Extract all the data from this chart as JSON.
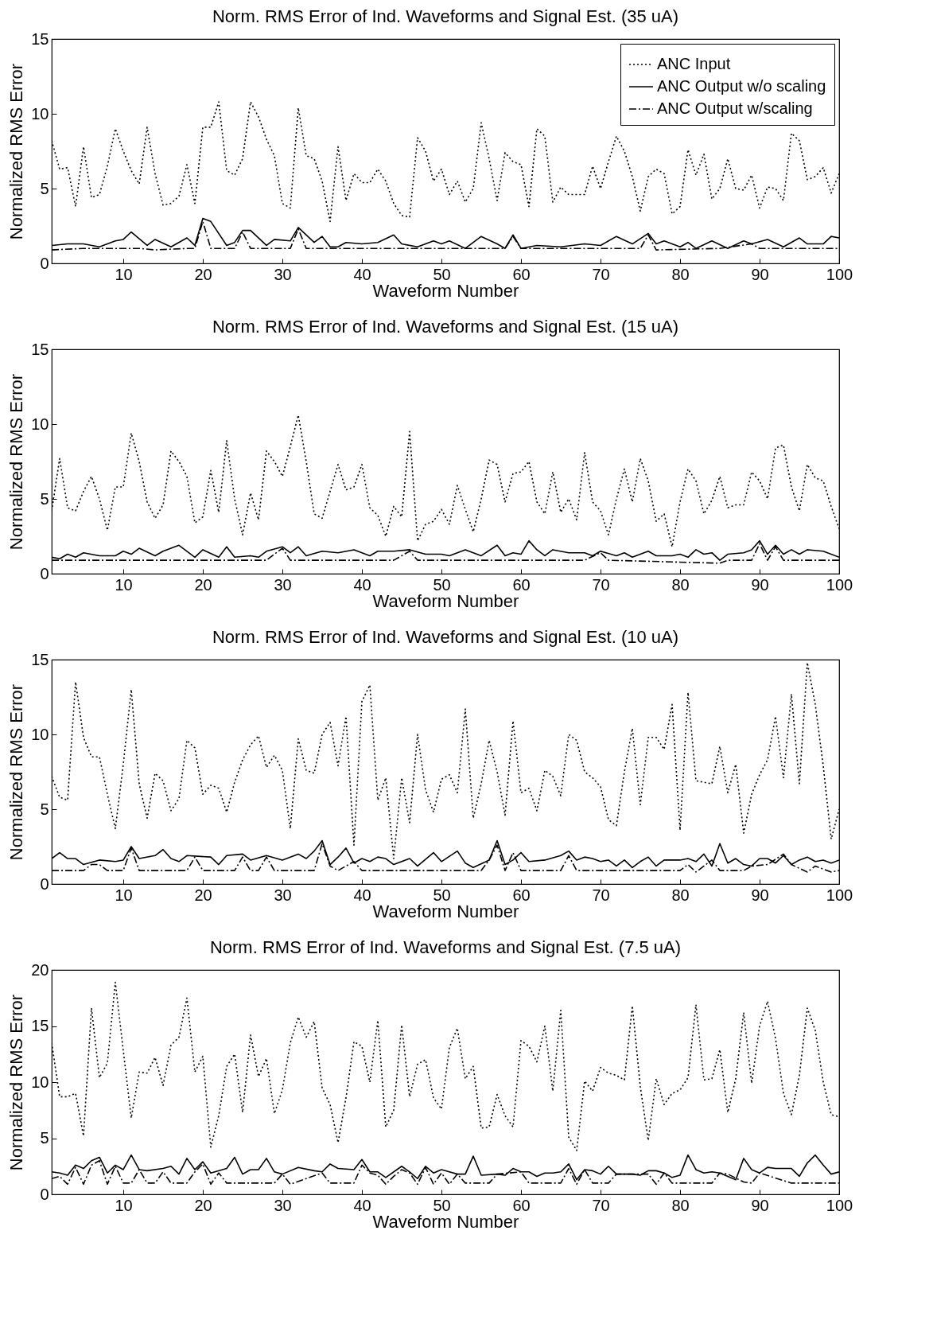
{
  "chart_data": [
    {
      "type": "line",
      "title": "Norm. RMS Error of Ind. Waveforms and Signal Est. (35 uA)",
      "xlabel": "Waveform Number",
      "ylabel": "Normalized RMS Error",
      "xlim": [
        1,
        100
      ],
      "xticks": [
        10,
        20,
        30,
        40,
        50,
        60,
        70,
        80,
        90,
        100
      ],
      "ylim": [
        0,
        15
      ],
      "yticks": [
        0,
        5,
        10,
        15
      ],
      "grid": false,
      "legend": "top right",
      "x": [
        1,
        2,
        3,
        4,
        5,
        6,
        7,
        8,
        9,
        10,
        11,
        12,
        13,
        14,
        15,
        16,
        17,
        18,
        19,
        20,
        21,
        22,
        23,
        24,
        25,
        26,
        27,
        28,
        29,
        30,
        31,
        32,
        33,
        34,
        35,
        36,
        37,
        38,
        39,
        40,
        41,
        42,
        43,
        44,
        45,
        46,
        47,
        48,
        49,
        50,
        51,
        52,
        53,
        54,
        55,
        56,
        57,
        58,
        59,
        60,
        61,
        62,
        63,
        64,
        65,
        66,
        67,
        68,
        69,
        70,
        71,
        72,
        73,
        74,
        75,
        76,
        77,
        78,
        79,
        80,
        81,
        82,
        83,
        84,
        85,
        86,
        87,
        88,
        89,
        90,
        91,
        92,
        93,
        94,
        95,
        96,
        97,
        98,
        99,
        100
      ],
      "series": [
        {
          "name": "ANC Input",
          "color": "#000000",
          "line_style": "dotted",
          "values": [
            8.2,
            6.3,
            6.4,
            3.8,
            7.8,
            4.4,
            4.6,
            6.5,
            9.0,
            7.5,
            6.2,
            5.3,
            9.1,
            6.0,
            3.9,
            4.0,
            4.5,
            6.6,
            4.0,
            9.1,
            9.1,
            10.8,
            6.2,
            5.9,
            7.0,
            10.8,
            9.8,
            8.3,
            7.2,
            4.0,
            3.7,
            10.4,
            7.2,
            7.0,
            5.5,
            2.8,
            7.8,
            4.2,
            6.0,
            5.4,
            5.4,
            6.3,
            5.5,
            4.0,
            3.2,
            3.1,
            8.4,
            7.5,
            5.5,
            6.3,
            4.6,
            5.5,
            4.1,
            5.0,
            9.4,
            7.0,
            4.2,
            7.4,
            6.8,
            6.6,
            3.8,
            9.0,
            8.5,
            4.1,
            5.1,
            4.6,
            4.6,
            4.6,
            6.5,
            5.0,
            6.8,
            8.5,
            7.5,
            5.8,
            3.5,
            5.8,
            6.3,
            6.0,
            3.3,
            3.8,
            7.6,
            5.9,
            7.3,
            4.3,
            5.0,
            7.0,
            5.0,
            4.9,
            5.9,
            3.7,
            5.1,
            5.0,
            4.2,
            8.7,
            8.2,
            5.6,
            5.8,
            6.4,
            4.7,
            6.0
          ]
        },
        {
          "name": "ANC Output w/o scaling",
          "color": "#000000",
          "line_style": "solid",
          "x": [
            1,
            3,
            5,
            7,
            9,
            10,
            11,
            13,
            14,
            16,
            18,
            19,
            20,
            21,
            23,
            24,
            25,
            26,
            28,
            29,
            31,
            32,
            34,
            35,
            36,
            37,
            38,
            40,
            42,
            44,
            45,
            47,
            49,
            50,
            51,
            53,
            55,
            57,
            58,
            59,
            60,
            62,
            65,
            68,
            70,
            72,
            74,
            76,
            77,
            78,
            80,
            81,
            82,
            84,
            86,
            88,
            89,
            91,
            93,
            95,
            96,
            98,
            99,
            100
          ],
          "values": [
            1.2,
            1.3,
            1.3,
            1.1,
            1.5,
            1.6,
            2.1,
            1.2,
            1.6,
            1.1,
            1.7,
            1.2,
            3.0,
            2.8,
            1.2,
            1.4,
            2.2,
            2.2,
            1.2,
            1.6,
            1.5,
            2.4,
            1.4,
            1.8,
            1.1,
            1.1,
            1.4,
            1.3,
            1.4,
            1.9,
            1.3,
            1.1,
            1.5,
            1.3,
            1.5,
            1.0,
            1.8,
            1.3,
            1.0,
            1.9,
            1.0,
            1.2,
            1.1,
            1.3,
            1.2,
            1.8,
            1.3,
            2.0,
            1.3,
            1.5,
            1.1,
            1.4,
            1.0,
            1.5,
            1.0,
            1.5,
            1.3,
            1.6,
            1.1,
            1.7,
            1.3,
            1.3,
            1.8,
            1.7
          ]
        },
        {
          "name": "ANC Output w/scaling",
          "color": "#000000",
          "line_style": "dashed",
          "x": [
            1,
            5,
            8,
            12,
            14,
            18,
            19,
            20,
            21,
            24,
            25,
            26,
            31,
            32,
            33,
            40,
            50,
            58,
            59,
            60,
            70,
            75,
            76,
            77,
            85,
            89,
            90,
            100
          ],
          "values": [
            0.9,
            1.0,
            1.0,
            1.0,
            0.9,
            1.0,
            1.0,
            2.8,
            1.0,
            1.0,
            2.1,
            1.0,
            1.0,
            2.3,
            1.0,
            1.0,
            1.0,
            1.0,
            1.8,
            1.0,
            1.0,
            1.0,
            1.9,
            0.9,
            1.0,
            1.3,
            1.0,
            1.0
          ]
        }
      ]
    },
    {
      "type": "line",
      "title": "Norm. RMS Error of Ind. Waveforms and Signal Est. (15 uA)",
      "xlabel": "Waveform Number",
      "ylabel": "Normalized RMS Error",
      "xlim": [
        1,
        100
      ],
      "xticks": [
        10,
        20,
        30,
        40,
        50,
        60,
        70,
        80,
        90,
        100
      ],
      "ylim": [
        0,
        15
      ],
      "yticks": [
        0,
        5,
        10,
        15
      ],
      "grid": false,
      "x": [
        1,
        2,
        3,
        4,
        5,
        6,
        7,
        8,
        9,
        10,
        11,
        12,
        13,
        14,
        15,
        16,
        17,
        18,
        19,
        20,
        21,
        22,
        23,
        24,
        25,
        26,
        27,
        28,
        29,
        30,
        31,
        32,
        33,
        34,
        35,
        36,
        37,
        38,
        39,
        40,
        41,
        42,
        43,
        44,
        45,
        46,
        47,
        48,
        49,
        50,
        51,
        52,
        53,
        54,
        55,
        56,
        57,
        58,
        59,
        60,
        61,
        62,
        63,
        64,
        65,
        66,
        67,
        68,
        69,
        70,
        71,
        72,
        73,
        74,
        75,
        76,
        77,
        78,
        79,
        80,
        81,
        82,
        83,
        84,
        85,
        86,
        87,
        88,
        89,
        90,
        91,
        92,
        93,
        94,
        95,
        96,
        97,
        98,
        99,
        100
      ],
      "series": [
        {
          "name": "ANC Input",
          "color": "#000000",
          "line_style": "dotted",
          "values": [
            4.2,
            7.7,
            4.4,
            4.2,
            5.5,
            6.5,
            5.0,
            2.9,
            5.8,
            5.8,
            9.4,
            7.5,
            4.8,
            3.7,
            4.6,
            8.2,
            7.5,
            6.5,
            3.4,
            3.8,
            6.9,
            4.1,
            8.9,
            5.0,
            2.6,
            5.4,
            3.6,
            8.2,
            7.5,
            6.5,
            8.5,
            10.6,
            7.5,
            4.0,
            3.7,
            5.5,
            7.3,
            5.6,
            5.8,
            7.3,
            4.4,
            3.9,
            2.5,
            4.5,
            3.8,
            9.5,
            2.2,
            3.3,
            3.5,
            4.3,
            3.3,
            5.9,
            4.3,
            2.8,
            5.0,
            7.6,
            7.3,
            4.8,
            6.7,
            6.8,
            7.5,
            4.8,
            4.0,
            6.8,
            4.1,
            5.0,
            3.6,
            8.1,
            4.8,
            4.2,
            2.6,
            5.0,
            7.0,
            4.8,
            7.7,
            6.2,
            3.5,
            4.0,
            1.8,
            4.8,
            7.0,
            6.2,
            4.0,
            4.9,
            6.5,
            4.4,
            4.6,
            4.6,
            6.8,
            6.2,
            5.0,
            8.4,
            8.6,
            5.8,
            4.2,
            7.3,
            6.4,
            6.2,
            4.5,
            3.0
          ]
        },
        {
          "name": "ANC Output w/o scaling",
          "color": "#000000",
          "line_style": "solid",
          "x": [
            1,
            2,
            3,
            4,
            5,
            7,
            9,
            10,
            11,
            12,
            14,
            15,
            17,
            19,
            20,
            22,
            23,
            24,
            26,
            27,
            28,
            30,
            31,
            32,
            33,
            35,
            37,
            39,
            41,
            42,
            44,
            46,
            48,
            50,
            51,
            53,
            55,
            57,
            58,
            59,
            60,
            61,
            62,
            63,
            64,
            66,
            68,
            69,
            70,
            72,
            73,
            74,
            76,
            77,
            79,
            80,
            81,
            82,
            83,
            84,
            85,
            86,
            88,
            89,
            90,
            91,
            92,
            93,
            94,
            95,
            96,
            98,
            100
          ],
          "values": [
            1.1,
            1.0,
            1.3,
            1.1,
            1.4,
            1.2,
            1.2,
            1.5,
            1.3,
            1.7,
            1.2,
            1.5,
            1.9,
            1.1,
            1.6,
            1.1,
            1.8,
            1.1,
            1.2,
            1.1,
            1.5,
            1.8,
            1.4,
            1.8,
            1.2,
            1.5,
            1.4,
            1.6,
            1.2,
            1.5,
            1.5,
            1.6,
            1.3,
            1.3,
            1.2,
            1.6,
            1.2,
            1.9,
            1.2,
            1.4,
            1.3,
            2.2,
            1.6,
            1.2,
            1.6,
            1.4,
            1.4,
            1.2,
            1.5,
            1.2,
            1.4,
            1.1,
            1.5,
            1.2,
            1.2,
            1.3,
            1.1,
            1.6,
            1.3,
            1.4,
            0.9,
            1.3,
            1.4,
            1.6,
            2.2,
            1.3,
            1.9,
            1.3,
            1.6,
            1.3,
            1.6,
            1.5,
            1.1
          ]
        },
        {
          "name": "ANC Output w/scaling",
          "color": "#000000",
          "line_style": "dashed",
          "x": [
            1,
            10,
            28,
            30,
            31,
            44,
            46,
            47,
            68,
            70,
            71,
            85,
            86,
            89,
            90,
            91,
            92,
            93,
            100
          ],
          "values": [
            0.9,
            0.9,
            0.9,
            1.7,
            0.9,
            0.9,
            1.5,
            0.9,
            0.9,
            1.4,
            0.9,
            0.7,
            0.9,
            0.9,
            2.0,
            0.9,
            1.8,
            0.9,
            0.9
          ]
        }
      ]
    },
    {
      "type": "line",
      "title": "Norm. RMS Error of Ind. Waveforms and Signal Est. (10 uA)",
      "xlabel": "Waveform Number",
      "ylabel": "Normalized RMS Error",
      "xlim": [
        1,
        100
      ],
      "xticks": [
        10,
        20,
        30,
        40,
        50,
        60,
        70,
        80,
        90,
        100
      ],
      "ylim": [
        0,
        15
      ],
      "yticks": [
        0,
        5,
        10,
        15
      ],
      "grid": false,
      "x": [
        1,
        2,
        3,
        4,
        5,
        6,
        7,
        8,
        9,
        10,
        11,
        12,
        13,
        14,
        15,
        16,
        17,
        18,
        19,
        20,
        21,
        22,
        23,
        24,
        25,
        26,
        27,
        28,
        29,
        30,
        31,
        32,
        33,
        34,
        35,
        36,
        37,
        38,
        39,
        40,
        41,
        42,
        43,
        44,
        45,
        46,
        47,
        48,
        49,
        50,
        51,
        52,
        53,
        54,
        55,
        56,
        57,
        58,
        59,
        60,
        61,
        62,
        63,
        64,
        65,
        66,
        67,
        68,
        69,
        70,
        71,
        72,
        73,
        74,
        75,
        76,
        77,
        78,
        79,
        80,
        81,
        82,
        83,
        84,
        85,
        86,
        87,
        88,
        89,
        90,
        91,
        92,
        93,
        94,
        95,
        96,
        97,
        98,
        99,
        100
      ],
      "series": [
        {
          "name": "ANC Input",
          "color": "#000000",
          "line_style": "dotted",
          "values": [
            7.2,
            5.8,
            5.6,
            13.5,
            9.8,
            8.5,
            8.5,
            6.0,
            3.7,
            8.0,
            13.0,
            6.7,
            4.4,
            7.4,
            6.9,
            4.9,
            5.7,
            9.6,
            9.1,
            6.0,
            6.6,
            6.4,
            4.8,
            6.8,
            8.3,
            9.3,
            9.9,
            7.8,
            8.6,
            7.6,
            3.7,
            9.7,
            7.6,
            7.4,
            10.0,
            10.8,
            7.9,
            11.2,
            2.6,
            12.2,
            13.3,
            5.6,
            7.1,
            1.7,
            7.1,
            4.1,
            10.0,
            6.3,
            4.8,
            7.0,
            7.3,
            6.1,
            11.7,
            4.4,
            6.7,
            9.6,
            7.5,
            4.6,
            10.9,
            6.1,
            6.4,
            4.9,
            7.6,
            7.2,
            5.9,
            10.0,
            9.6,
            7.5,
            7.1,
            6.5,
            4.3,
            3.9,
            7.5,
            10.4,
            5.3,
            9.8,
            9.8,
            9.0,
            12.0,
            3.6,
            12.8,
            6.9,
            6.8,
            6.7,
            9.2,
            6.1,
            8.0,
            3.4,
            6.0,
            7.3,
            8.3,
            11.2,
            7.1,
            12.7,
            6.7,
            14.8,
            12.0,
            7.9,
            3.0,
            5.0
          ]
        },
        {
          "name": "ANC Output w/o scaling",
          "color": "#000000",
          "line_style": "solid",
          "x": [
            1,
            2,
            3,
            4,
            5,
            7,
            9,
            10,
            11,
            12,
            14,
            15,
            16,
            17,
            18,
            21,
            22,
            23,
            25,
            26,
            28,
            30,
            32,
            33,
            34,
            35,
            36,
            37,
            38,
            39,
            40,
            41,
            42,
            43,
            44,
            46,
            47,
            49,
            50,
            52,
            53,
            54,
            56,
            57,
            58,
            59,
            60,
            61,
            63,
            65,
            66,
            67,
            68,
            69,
            70,
            71,
            72,
            73,
            74,
            75,
            76,
            77,
            78,
            80,
            81,
            82,
            83,
            84,
            85,
            86,
            87,
            88,
            89,
            90,
            91,
            92,
            93,
            94,
            95,
            96,
            97,
            98,
            99,
            100
          ],
          "values": [
            1.7,
            2.1,
            1.7,
            1.7,
            1.3,
            1.6,
            1.5,
            1.6,
            2.5,
            1.7,
            1.9,
            2.3,
            1.7,
            1.5,
            1.9,
            1.8,
            1.3,
            1.9,
            2.0,
            1.6,
            1.9,
            1.6,
            2.0,
            1.7,
            2.2,
            2.9,
            1.3,
            1.8,
            2.4,
            1.4,
            1.7,
            1.5,
            1.8,
            1.7,
            1.3,
            1.7,
            1.2,
            2.1,
            1.5,
            2.2,
            1.4,
            1.1,
            1.6,
            2.9,
            1.3,
            1.6,
            2.1,
            1.5,
            1.6,
            1.9,
            2.2,
            1.6,
            1.8,
            1.7,
            1.5,
            1.6,
            1.2,
            1.6,
            1.1,
            1.5,
            1.8,
            1.2,
            1.6,
            1.6,
            1.7,
            1.5,
            2.0,
            1.2,
            2.7,
            1.4,
            1.7,
            1.3,
            1.2,
            1.7,
            1.7,
            1.4,
            1.9,
            1.3,
            1.6,
            1.8,
            1.5,
            1.6,
            1.4,
            1.6
          ]
        },
        {
          "name": "ANC Output w/scaling",
          "color": "#000000",
          "line_style": "dashed",
          "x": [
            1,
            5,
            6,
            7,
            8,
            10,
            11,
            12,
            18,
            19,
            20,
            24,
            25,
            26,
            27,
            28,
            29,
            34,
            35,
            36,
            37,
            38,
            39,
            40,
            55,
            56,
            57,
            58,
            59,
            60,
            65,
            66,
            67,
            80,
            81,
            82,
            84,
            85,
            88,
            89,
            91,
            93,
            94,
            96,
            97,
            99,
            100
          ],
          "values": [
            0.9,
            0.9,
            1.3,
            1.3,
            0.9,
            0.9,
            2.4,
            0.9,
            0.9,
            1.8,
            0.9,
            0.9,
            1.8,
            0.9,
            0.9,
            1.8,
            0.9,
            0.9,
            2.7,
            1.2,
            0.9,
            1.2,
            1.5,
            0.9,
            0.9,
            1.6,
            2.6,
            0.9,
            2.1,
            0.9,
            0.9,
            1.9,
            0.9,
            0.9,
            1.3,
            0.8,
            1.6,
            0.9,
            0.9,
            1.2,
            1.3,
            2.0,
            1.3,
            0.8,
            1.2,
            0.8,
            0.9
          ]
        }
      ]
    },
    {
      "type": "line",
      "title": "Norm. RMS Error of Ind. Waveforms and Signal Est. (7.5 uA)",
      "xlabel": "Waveform Number",
      "ylabel": "Normalized RMS Error",
      "xlim": [
        1,
        100
      ],
      "xticks": [
        10,
        20,
        30,
        40,
        50,
        60,
        70,
        80,
        90,
        100
      ],
      "ylim": [
        0,
        20
      ],
      "yticks": [
        0,
        5,
        10,
        15,
        20
      ],
      "grid": false,
      "x": [
        1,
        2,
        3,
        4,
        5,
        6,
        7,
        8,
        9,
        10,
        11,
        12,
        13,
        14,
        15,
        16,
        17,
        18,
        19,
        20,
        21,
        22,
        23,
        24,
        25,
        26,
        27,
        28,
        29,
        30,
        31,
        32,
        33,
        34,
        35,
        36,
        37,
        38,
        39,
        40,
        41,
        42,
        43,
        44,
        45,
        46,
        47,
        48,
        49,
        50,
        51,
        52,
        53,
        54,
        55,
        56,
        57,
        58,
        59,
        60,
        61,
        62,
        63,
        64,
        65,
        66,
        67,
        68,
        69,
        70,
        71,
        72,
        73,
        74,
        75,
        76,
        77,
        78,
        79,
        80,
        81,
        82,
        83,
        84,
        85,
        86,
        87,
        88,
        89,
        90,
        91,
        92,
        93,
        94,
        95,
        96,
        97,
        98,
        99,
        100
      ],
      "series": [
        {
          "name": "ANC Input",
          "color": "#000000",
          "line_style": "dotted",
          "values": [
            13.5,
            8.7,
            8.7,
            9.0,
            5.2,
            16.6,
            10.4,
            11.7,
            18.9,
            12.8,
            6.8,
            10.9,
            10.8,
            12.2,
            9.7,
            13.3,
            14.0,
            17.5,
            10.9,
            12.3,
            4.2,
            7.0,
            11.4,
            12.5,
            7.3,
            14.2,
            10.5,
            12.1,
            7.2,
            9.3,
            13.5,
            15.8,
            14.0,
            15.4,
            9.5,
            8.0,
            4.6,
            8.6,
            13.6,
            13.2,
            10.0,
            15.5,
            6.0,
            7.5,
            15.1,
            8.7,
            11.6,
            12.0,
            8.6,
            7.6,
            13.1,
            14.8,
            10.3,
            11.4,
            5.9,
            6.0,
            8.9,
            7.0,
            6.0,
            13.7,
            13.2,
            11.8,
            15.0,
            9.2,
            16.4,
            5.1,
            3.9,
            10.1,
            9.2,
            11.3,
            10.8,
            10.6,
            10.2,
            16.8,
            9.6,
            4.8,
            10.3,
            8.0,
            9.0,
            9.3,
            10.4,
            16.9,
            10.2,
            10.3,
            12.9,
            7.3,
            10.3,
            16.2,
            9.9,
            15.0,
            17.2,
            13.9,
            9.0,
            7.1,
            10.6,
            16.6,
            14.6,
            10.0,
            7.1,
            6.9
          ]
        },
        {
          "name": "ANC Output w/o scaling",
          "color": "#000000",
          "line_style": "solid",
          "x": [
            1,
            2,
            3,
            4,
            5,
            6,
            7,
            8,
            9,
            10,
            11,
            12,
            13,
            15,
            16,
            17,
            18,
            19,
            20,
            21,
            23,
            24,
            25,
            26,
            27,
            28,
            29,
            30,
            32,
            34,
            35,
            36,
            37,
            39,
            40,
            41,
            42,
            43,
            45,
            46,
            47,
            48,
            49,
            50,
            51,
            52,
            53,
            54,
            55,
            57,
            58,
            59,
            60,
            61,
            62,
            63,
            64,
            65,
            66,
            67,
            68,
            69,
            70,
            71,
            72,
            74,
            75,
            76,
            77,
            78,
            79,
            80,
            81,
            82,
            83,
            84,
            85,
            87,
            88,
            89,
            90,
            91,
            92,
            93,
            94,
            95,
            96,
            97,
            98,
            99,
            100
          ],
          "values": [
            2.0,
            1.9,
            1.7,
            2.6,
            2.3,
            3.0,
            3.3,
            1.9,
            2.6,
            2.2,
            3.5,
            2.2,
            2.1,
            2.3,
            2.5,
            1.8,
            3.2,
            2.2,
            2.9,
            1.9,
            2.3,
            3.3,
            1.8,
            2.2,
            2.2,
            3.2,
            2.0,
            1.8,
            2.4,
            2.1,
            2.0,
            2.7,
            2.3,
            2.2,
            3.1,
            2.0,
            2.0,
            1.5,
            2.5,
            2.0,
            1.4,
            2.5,
            1.9,
            2.2,
            2.0,
            1.8,
            1.8,
            3.4,
            1.7,
            1.8,
            1.7,
            2.3,
            2.0,
            2.0,
            1.6,
            1.9,
            1.9,
            2.0,
            2.7,
            1.3,
            2.2,
            2.1,
            1.8,
            2.5,
            1.8,
            1.8,
            1.7,
            2.1,
            2.1,
            1.9,
            1.5,
            1.7,
            3.5,
            2.2,
            1.9,
            2.0,
            1.9,
            1.3,
            3.2,
            2.2,
            1.9,
            2.4,
            2.3,
            2.3,
            2.3,
            1.6,
            2.8,
            3.5,
            2.6,
            1.8,
            2.0
          ]
        },
        {
          "name": "ANC Output w/scaling",
          "color": "#000000",
          "line_style": "dashed",
          "x": [
            1,
            2,
            3,
            4,
            5,
            6,
            7,
            8,
            9,
            10,
            11,
            12,
            13,
            14,
            15,
            16,
            17,
            18,
            19,
            20,
            21,
            22,
            23,
            29,
            30,
            31,
            35,
            36,
            39,
            40,
            41,
            42,
            43,
            44,
            45,
            46,
            47,
            48,
            49,
            50,
            51,
            52,
            53,
            56,
            57,
            60,
            61,
            65,
            66,
            67,
            68,
            69,
            71,
            72,
            76,
            77,
            78,
            79,
            84,
            85,
            86,
            88,
            89,
            90,
            94,
            100
          ],
          "values": [
            1.4,
            1.6,
            0.9,
            2.4,
            0.9,
            2.6,
            3.0,
            0.9,
            2.5,
            1.0,
            1.0,
            2.2,
            1.0,
            1.0,
            2.0,
            1.0,
            1.0,
            1.0,
            2.0,
            2.7,
            0.9,
            1.9,
            1.0,
            1.0,
            1.8,
            0.9,
            1.9,
            1.0,
            1.0,
            2.6,
            1.9,
            1.7,
            0.9,
            1.6,
            2.2,
            1.9,
            0.9,
            2.4,
            0.9,
            1.9,
            0.9,
            1.8,
            1.0,
            1.0,
            1.8,
            2.0,
            1.0,
            1.0,
            2.3,
            0.9,
            2.2,
            1.0,
            1.0,
            1.8,
            1.8,
            0.9,
            1.9,
            1.0,
            1.0,
            1.9,
            1.8,
            1.1,
            1.0,
            1.9,
            1.0,
            1.0
          ]
        }
      ]
    }
  ]
}
